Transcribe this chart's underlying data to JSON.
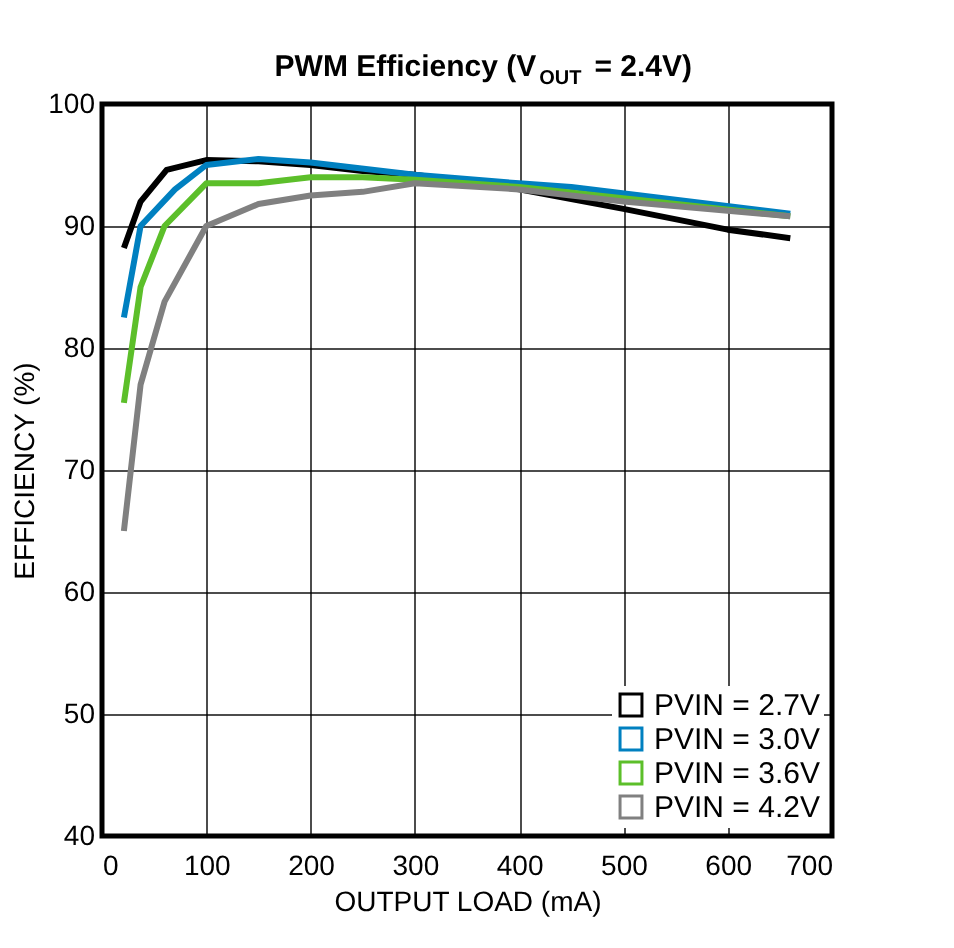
{
  "chart_data": {
    "type": "line",
    "title": "PWM Efficiency (V$_{OUT}$ = 2.4V)",
    "xlabel": "OUTPUT LOAD (mA)",
    "ylabel": "EFFICIENCY (%)",
    "xlim": [
      0,
      700
    ],
    "xticks": [
      0,
      100,
      200,
      300,
      400,
      500,
      600,
      700
    ],
    "ylim": [
      40,
      100
    ],
    "yticks": [
      40,
      50,
      60,
      70,
      80,
      90,
      100
    ],
    "grid": true,
    "legend": "bottom right",
    "line_style": "solid",
    "series": [
      {
        "name": "PVIN = 2.7V",
        "color": "#000000",
        "x": [
          21,
          37,
          62,
          100,
          150,
          200,
          250,
          300,
          400,
          450,
          500,
          600,
          660
        ],
        "values": [
          88.2,
          92.0,
          94.6,
          95.4,
          95.3,
          95.0,
          94.5,
          94.2,
          93.0,
          92.2,
          91.4,
          89.7,
          89.0
        ]
      },
      {
        "name": "PVIN = 3.0V",
        "color": "#0080c0",
        "x": [
          21,
          37,
          70,
          100,
          150,
          200,
          300,
          400,
          450,
          660
        ],
        "values": [
          82.5,
          90.0,
          93.0,
          95.0,
          95.5,
          95.2,
          94.2,
          93.5,
          93.2,
          91.0
        ]
      },
      {
        "name": "PVIN = 3.6V",
        "color": "#5cbf2a",
        "x": [
          21,
          37,
          60,
          100,
          150,
          200,
          250,
          300,
          400,
          660
        ],
        "values": [
          75.5,
          85.0,
          90.0,
          93.5,
          93.5,
          94.0,
          94.0,
          93.8,
          93.2,
          90.8
        ]
      },
      {
        "name": "PVIN = 4.2V",
        "color": "#808080",
        "x": [
          21,
          37,
          60,
          100,
          150,
          200,
          250,
          300,
          400,
          500,
          660
        ],
        "values": [
          65.0,
          77.0,
          83.8,
          90.0,
          91.8,
          92.5,
          92.8,
          93.5,
          93.0,
          92.0,
          90.8
        ]
      }
    ]
  }
}
